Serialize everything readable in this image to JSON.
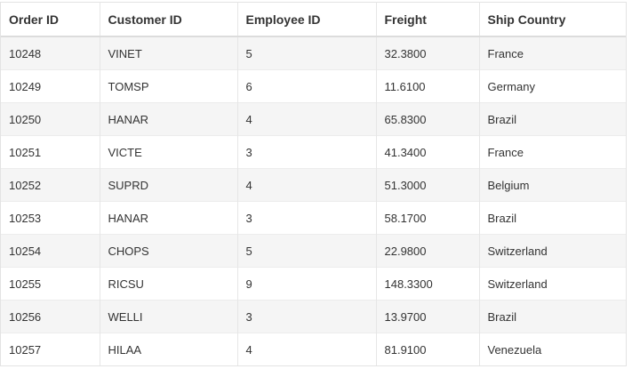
{
  "grid": {
    "columns": [
      "Order ID",
      "Customer ID",
      "Employee ID",
      "Freight",
      "Ship Country"
    ],
    "rows": [
      [
        "10248",
        "VINET",
        "5",
        "32.3800",
        "France"
      ],
      [
        "10249",
        "TOMSP",
        "6",
        "11.6100",
        "Germany"
      ],
      [
        "10250",
        "HANAR",
        "4",
        "65.8300",
        "Brazil"
      ],
      [
        "10251",
        "VICTE",
        "3",
        "41.3400",
        "France"
      ],
      [
        "10252",
        "SUPRD",
        "4",
        "51.3000",
        "Belgium"
      ],
      [
        "10253",
        "HANAR",
        "3",
        "58.1700",
        "Brazil"
      ],
      [
        "10254",
        "CHOPS",
        "5",
        "22.9800",
        "Switzerland"
      ],
      [
        "10255",
        "RICSU",
        "9",
        "148.3300",
        "Switzerland"
      ],
      [
        "10256",
        "WELLI",
        "3",
        "13.9700",
        "Brazil"
      ],
      [
        "10257",
        "HILAA",
        "4",
        "81.9100",
        "Venezuela"
      ]
    ]
  }
}
